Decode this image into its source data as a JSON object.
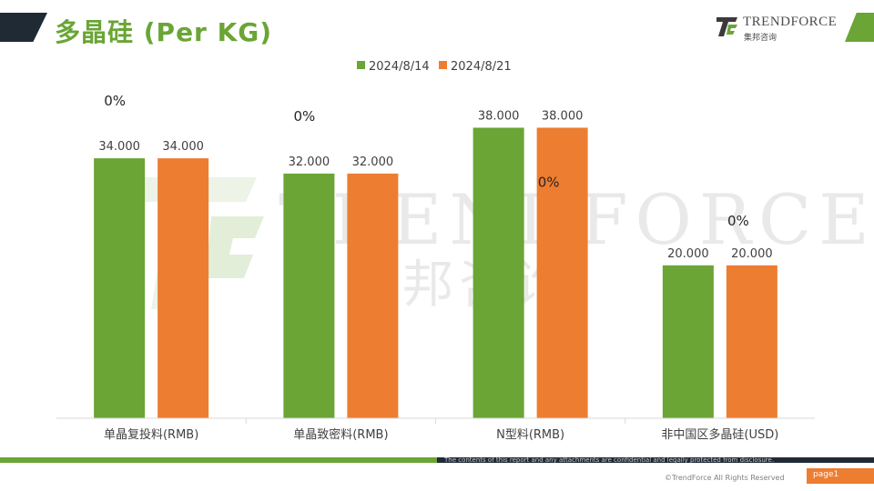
{
  "header": {
    "title": "多晶硅 (Per KG)"
  },
  "logo": {
    "name": "TRENDFORCE",
    "sub": "集邦咨询"
  },
  "colors": {
    "green": "#6aa535",
    "orange": "#ed7d31",
    "dark": "#1f2a35"
  },
  "chart_data": {
    "type": "bar",
    "title": "",
    "categories": [
      "单晶复投料(RMB)",
      "单晶致密料(RMB)",
      "N型料(RMB)",
      "非中国区多晶硅(USD)"
    ],
    "series": [
      {
        "name": "2024/8/14",
        "values": [
          34,
          32,
          38,
          20
        ],
        "labels": [
          "34.000",
          "32.000",
          "38.000",
          "20.000"
        ],
        "color": "#6aa535"
      },
      {
        "name": "2024/8/21",
        "values": [
          34,
          32,
          38,
          20
        ],
        "labels": [
          "34.000",
          "32.000",
          "38.000",
          "20.000"
        ],
        "color": "#ed7d31"
      }
    ],
    "change_labels": [
      "0%",
      "0%",
      "0%",
      "0%"
    ],
    "ylim": [
      0,
      44
    ],
    "grid": false,
    "legend": "top"
  },
  "footer": {
    "disclaimer": "The contents of this report and any attachments are confidential and legally protected from disclosure.",
    "copyright": "©TrendForce All Rights Reserved",
    "page": "page1"
  }
}
